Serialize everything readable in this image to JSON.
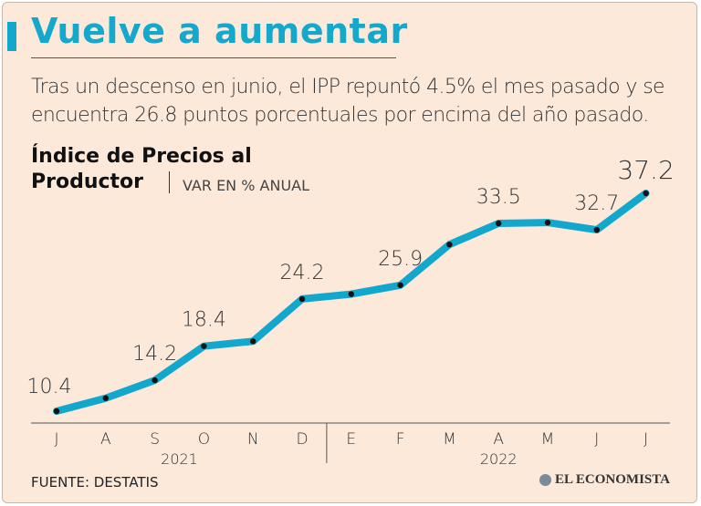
{
  "header": {
    "title": "Vuelve a aumentar",
    "subtitle": "Tras un descenso en junio, el IPP repuntó 4.5% el mes pasado y se encuentra 26.8 puntos porcentuales por encima del año pasado."
  },
  "colors": {
    "accent": "#12a7cc",
    "background": "#fce9da",
    "line": "#12a7cc",
    "marker": "#111111"
  },
  "footer": {
    "source": "FUENTE: DESTATIS",
    "brand": "EL ECONOMISTA",
    "brand_icon": "el-economista-logo-icon"
  },
  "chart_data": {
    "type": "line",
    "title": "Índice de Precios al Productor",
    "unit": "VAR EN % ANUAL",
    "categories": [
      "J",
      "A",
      "S",
      "O",
      "N",
      "D",
      "E",
      "F",
      "M",
      "A",
      "M",
      "J",
      "J"
    ],
    "years": [
      {
        "label": "2021",
        "from": 0,
        "to": 5
      },
      {
        "label": "2022",
        "from": 6,
        "to": 12
      }
    ],
    "series": [
      {
        "name": "IPP",
        "values": [
          10.4,
          12.0,
          14.2,
          18.4,
          19.0,
          24.2,
          24.8,
          25.9,
          30.9,
          33.5,
          33.6,
          32.7,
          37.2
        ]
      }
    ],
    "data_labels": [
      {
        "index": 0,
        "text": "10.4"
      },
      {
        "index": 2,
        "text": "14.2"
      },
      {
        "index": 3,
        "text": "18.4"
      },
      {
        "index": 5,
        "text": "24.2"
      },
      {
        "index": 7,
        "text": "25.9"
      },
      {
        "index": 9,
        "text": "33.5"
      },
      {
        "index": 11,
        "text": "32.7"
      },
      {
        "index": 12,
        "text": "37.2",
        "emphasis": true
      }
    ],
    "ylim": [
      8,
      38
    ]
  }
}
